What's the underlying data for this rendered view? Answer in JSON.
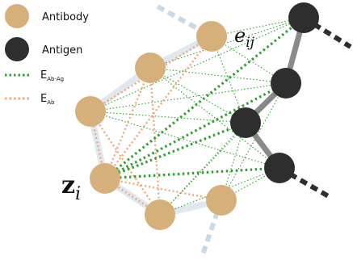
{
  "legend": {
    "antibody": "Antibody",
    "antigen": "Antigen",
    "e_abag_main": "E",
    "e_abag_sub": "Ab-Ag",
    "e_ab_main": "E",
    "e_ab_sub": "Ab"
  },
  "labels": {
    "zi_main": "z",
    "zi_sub": "i",
    "eij_main": "e",
    "eij_sub": "ij"
  },
  "colors": {
    "antibody_fill": "#d6b07a",
    "antigen_fill": "#2e2e2e",
    "ab_ag_edge": "#2ea02e",
    "ab_edge": "#f2a77a",
    "ab_backbone": "#dfe8ef",
    "ag_backbone": "#8a8a8a",
    "stub_light": "#c8dae6"
  }
}
